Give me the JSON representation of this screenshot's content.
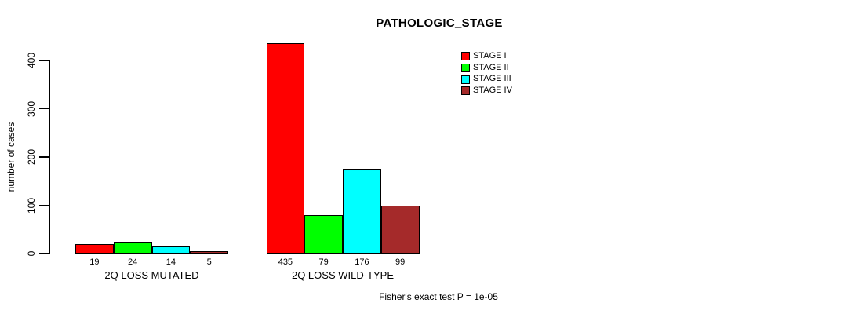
{
  "chart_data": {
    "type": "bar",
    "title": "PATHOLOGIC_STAGE",
    "ylabel": "number of cases",
    "ylim": [
      0,
      400
    ],
    "yticks": [
      0,
      100,
      200,
      300,
      400
    ],
    "grid": false,
    "legend_position": "top-right",
    "series": [
      {
        "name": "STAGE I",
        "color": "#ff0000"
      },
      {
        "name": "STAGE II",
        "color": "#00ff00"
      },
      {
        "name": "STAGE III",
        "color": "#00ffff"
      },
      {
        "name": "STAGE IV",
        "color": "#a52a2a"
      }
    ],
    "groups": [
      {
        "label": "2Q LOSS MUTATED",
        "values": [
          19,
          24,
          14,
          5
        ]
      },
      {
        "label": "2Q LOSS WILD-TYPE",
        "values": [
          435,
          79,
          176,
          99
        ]
      }
    ],
    "annotation": "Fisher's exact test P = 1e-05"
  }
}
